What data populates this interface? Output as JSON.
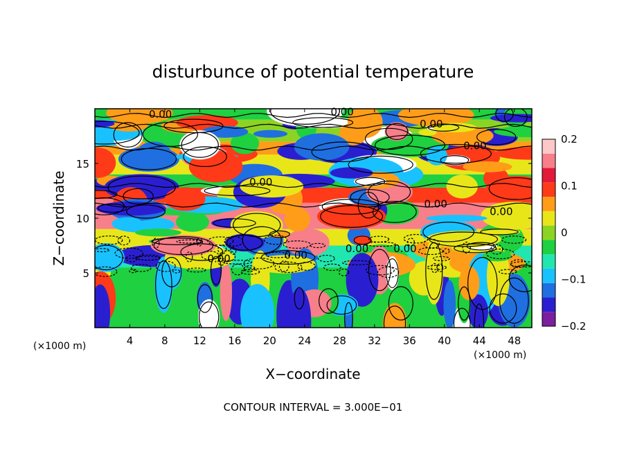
{
  "chart_data": {
    "type": "heatmap",
    "title": "disturbunce of potential temperature",
    "xlabel": "X−coordinate",
    "ylabel": "Z−coordinate",
    "x_unit": "(×1000 m)",
    "z_unit": "(×1000 m)",
    "x_ticks": [
      4,
      8,
      12,
      16,
      20,
      24,
      28,
      32,
      36,
      40,
      44,
      48
    ],
    "x_tick_labels": [
      "4",
      "8",
      "12",
      "16",
      "20",
      "24",
      "28",
      "32",
      "36",
      "40",
      "44",
      "48"
    ],
    "y_ticks": [
      5,
      10,
      15
    ],
    "y_tick_labels": [
      "5",
      "10",
      "15"
    ],
    "xlim": [
      0,
      50
    ],
    "ylim": [
      0,
      20
    ],
    "colorbar": {
      "range": [
        -0.2,
        0.2
      ],
      "tick_values": [
        0.2,
        0.1,
        0,
        -0.1,
        -0.2
      ],
      "tick_labels": [
        "0.2",
        "0.1",
        "0",
        "−0.1",
        "−0.2"
      ],
      "colors": [
        "#7a1f9e",
        "#2a1fd0",
        "#1f6fe0",
        "#19c2ff",
        "#21e6b0",
        "#1fd040",
        "#8cd424",
        "#e8e619",
        "#ff9d19",
        "#ff3a19",
        "#e3193a",
        "#f77f8a",
        "#ffc8c8"
      ]
    },
    "bands": [
      {
        "z": [
          19.0,
          20.0
        ],
        "value": -0.02
      },
      {
        "z": [
          17.0,
          19.0
        ],
        "value": 0.01
      },
      {
        "z": [
          15.8,
          17.0
        ],
        "value": 0.06
      },
      {
        "z": [
          14.0,
          15.8
        ],
        "value": 0.04
      },
      {
        "z": [
          12.8,
          14.0
        ],
        "value": -0.03
      },
      {
        "z": [
          11.4,
          12.8
        ],
        "value": 0.1
      },
      {
        "z": [
          9.0,
          11.4
        ],
        "value": 0.14
      },
      {
        "z": [
          7.5,
          9.0
        ],
        "value": 0.02
      },
      {
        "z": [
          5.5,
          7.5
        ],
        "value": -0.06
      },
      {
        "z": [
          0.0,
          5.5
        ],
        "value": -0.02
      }
    ],
    "contour_labels": [
      {
        "x": 7.5,
        "z": 19.5,
        "text": "0.00"
      },
      {
        "x": 28.3,
        "z": 19.7,
        "text": "0.00"
      },
      {
        "x": 38.5,
        "z": 18.6,
        "text": "0.00"
      },
      {
        "x": 43.5,
        "z": 16.6,
        "text": "0.00"
      },
      {
        "x": 19.0,
        "z": 13.3,
        "text": "0.00"
      },
      {
        "x": 39.0,
        "z": 11.3,
        "text": "0.00"
      },
      {
        "x": 46.5,
        "z": 10.6,
        "text": "0.00"
      },
      {
        "x": 30.0,
        "z": 7.2,
        "text": "0.00"
      },
      {
        "x": 35.5,
        "z": 7.2,
        "text": "0.00"
      },
      {
        "x": 23.0,
        "z": 6.6,
        "text": "0.00"
      },
      {
        "x": 14.2,
        "z": 6.3,
        "text": "0.00"
      }
    ],
    "annotation": "CONTOUR INTERVAL = 3.000E−01"
  }
}
